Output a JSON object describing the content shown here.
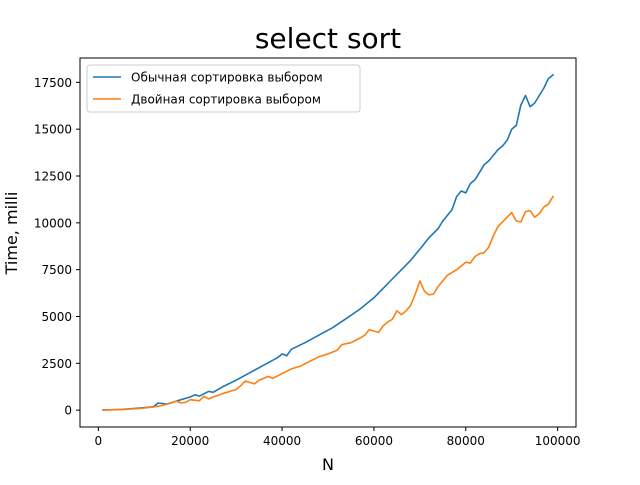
{
  "chart_data": {
    "type": "line",
    "title": "select sort",
    "xlabel": "N",
    "ylabel": "Time, milli",
    "xlim": [
      -4000,
      104000
    ],
    "ylim": [
      -900,
      18800
    ],
    "xticks": [
      0,
      20000,
      40000,
      60000,
      80000,
      100000
    ],
    "yticks": [
      0,
      2500,
      5000,
      7500,
      10000,
      12500,
      15000,
      17500
    ],
    "grid": false,
    "legend_position": "upper-left",
    "series": [
      {
        "name": "Обычная сортировка выбором",
        "color": "#1f77b4",
        "points": [
          [
            1000,
            0
          ],
          [
            5000,
            40
          ],
          [
            9000,
            110
          ],
          [
            12000,
            180
          ],
          [
            13000,
            380
          ],
          [
            15000,
            330
          ],
          [
            18000,
            560
          ],
          [
            20000,
            700
          ],
          [
            21000,
            820
          ],
          [
            22000,
            750
          ],
          [
            24000,
            1000
          ],
          [
            25000,
            950
          ],
          [
            27000,
            1240
          ],
          [
            30000,
            1600
          ],
          [
            33000,
            2000
          ],
          [
            36000,
            2400
          ],
          [
            39000,
            2800
          ],
          [
            40000,
            3000
          ],
          [
            41000,
            2900
          ],
          [
            42000,
            3250
          ],
          [
            45000,
            3600
          ],
          [
            48000,
            4000
          ],
          [
            51000,
            4400
          ],
          [
            54000,
            4900
          ],
          [
            57000,
            5400
          ],
          [
            60000,
            6000
          ],
          [
            62000,
            6500
          ],
          [
            64000,
            7000
          ],
          [
            66000,
            7500
          ],
          [
            68000,
            8000
          ],
          [
            70000,
            8600
          ],
          [
            72000,
            9200
          ],
          [
            74000,
            9700
          ],
          [
            75000,
            10100
          ],
          [
            77000,
            10700
          ],
          [
            78000,
            11400
          ],
          [
            79000,
            11700
          ],
          [
            80000,
            11600
          ],
          [
            81000,
            12100
          ],
          [
            82000,
            12300
          ],
          [
            84000,
            13100
          ],
          [
            85000,
            13300
          ],
          [
            87000,
            13900
          ],
          [
            88000,
            14100
          ],
          [
            89000,
            14400
          ],
          [
            90000,
            15000
          ],
          [
            91000,
            15200
          ],
          [
            92000,
            16300
          ],
          [
            93000,
            16800
          ],
          [
            94000,
            16200
          ],
          [
            95000,
            16400
          ],
          [
            96000,
            16800
          ],
          [
            97000,
            17200
          ],
          [
            98000,
            17700
          ],
          [
            99000,
            17900
          ]
        ]
      },
      {
        "name": "Двойная сортировка выбором",
        "color": "#ff7f0e",
        "points": [
          [
            1000,
            0
          ],
          [
            5000,
            30
          ],
          [
            9000,
            90
          ],
          [
            12000,
            170
          ],
          [
            14000,
            260
          ],
          [
            16000,
            400
          ],
          [
            17000,
            480
          ],
          [
            18000,
            380
          ],
          [
            19000,
            420
          ],
          [
            20000,
            560
          ],
          [
            22000,
            500
          ],
          [
            23000,
            740
          ],
          [
            24000,
            600
          ],
          [
            25000,
            700
          ],
          [
            27000,
            880
          ],
          [
            30000,
            1100
          ],
          [
            31000,
            1300
          ],
          [
            32000,
            1550
          ],
          [
            34000,
            1400
          ],
          [
            35000,
            1600
          ],
          [
            37000,
            1800
          ],
          [
            38000,
            1700
          ],
          [
            40000,
            1950
          ],
          [
            42000,
            2200
          ],
          [
            44000,
            2350
          ],
          [
            46000,
            2600
          ],
          [
            48000,
            2850
          ],
          [
            50000,
            3000
          ],
          [
            52000,
            3200
          ],
          [
            53000,
            3500
          ],
          [
            55000,
            3600
          ],
          [
            57000,
            3850
          ],
          [
            58000,
            4000
          ],
          [
            59000,
            4300
          ],
          [
            61000,
            4150
          ],
          [
            62000,
            4500
          ],
          [
            63000,
            4700
          ],
          [
            64000,
            4850
          ],
          [
            65000,
            5300
          ],
          [
            66000,
            5100
          ],
          [
            67000,
            5300
          ],
          [
            68000,
            5600
          ],
          [
            69000,
            6200
          ],
          [
            70000,
            6900
          ],
          [
            71000,
            6350
          ],
          [
            72000,
            6150
          ],
          [
            73000,
            6200
          ],
          [
            74000,
            6600
          ],
          [
            76000,
            7200
          ],
          [
            78000,
            7500
          ],
          [
            80000,
            7900
          ],
          [
            81000,
            7850
          ],
          [
            82000,
            8200
          ],
          [
            83000,
            8350
          ],
          [
            84000,
            8400
          ],
          [
            85000,
            8700
          ],
          [
            86000,
            9300
          ],
          [
            87000,
            9800
          ],
          [
            89000,
            10300
          ],
          [
            90000,
            10550
          ],
          [
            91000,
            10100
          ],
          [
            92000,
            10050
          ],
          [
            93000,
            10600
          ],
          [
            94000,
            10650
          ],
          [
            95000,
            10300
          ],
          [
            96000,
            10500
          ],
          [
            97000,
            10850
          ],
          [
            98000,
            11000
          ],
          [
            99000,
            11400
          ]
        ]
      }
    ]
  }
}
